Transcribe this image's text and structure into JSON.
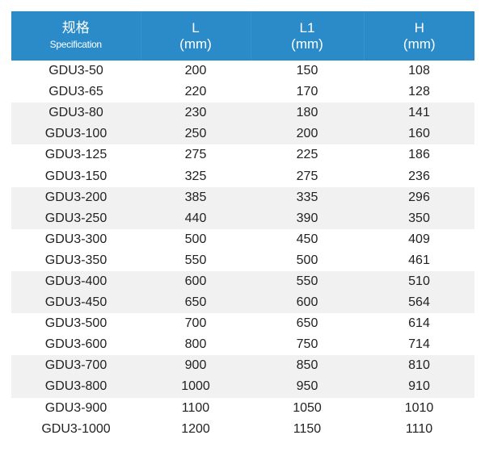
{
  "header": [
    {
      "title": "规格",
      "subtitle": "Specification"
    },
    {
      "title": "L",
      "subtitle": "(mm)"
    },
    {
      "title": "L1",
      "subtitle": "(mm)"
    },
    {
      "title": "H",
      "subtitle": "(mm)"
    }
  ],
  "colors": {
    "header_bg": "#2b8bc8",
    "stripe": "#f1f1f1"
  },
  "rows": [
    [
      "GDU3-50",
      "200",
      "150",
      "108"
    ],
    [
      "GDU3-65",
      "220",
      "170",
      "128"
    ],
    [
      "GDU3-80",
      "230",
      "180",
      "141"
    ],
    [
      "GDU3-100",
      "250",
      "200",
      "160"
    ],
    [
      "GDU3-125",
      "275",
      "225",
      "186"
    ],
    [
      "GDU3-150",
      "325",
      "275",
      "236"
    ],
    [
      "GDU3-200",
      "385",
      "335",
      "296"
    ],
    [
      "GDU3-250",
      "440",
      "390",
      "350"
    ],
    [
      "GDU3-300",
      "500",
      "450",
      "409"
    ],
    [
      "GDU3-350",
      "550",
      "500",
      "461"
    ],
    [
      "GDU3-400",
      "600",
      "550",
      "510"
    ],
    [
      "GDU3-450",
      "650",
      "600",
      "564"
    ],
    [
      "GDU3-500",
      "700",
      "650",
      "614"
    ],
    [
      "GDU3-600",
      "800",
      "750",
      "714"
    ],
    [
      "GDU3-700",
      "900",
      "850",
      "810"
    ],
    [
      "GDU3-800",
      "1000",
      "950",
      "910"
    ],
    [
      "GDU3-900",
      "1100",
      "1050",
      "1010"
    ],
    [
      "GDU3-1000",
      "1200",
      "1150",
      "1110"
    ]
  ]
}
